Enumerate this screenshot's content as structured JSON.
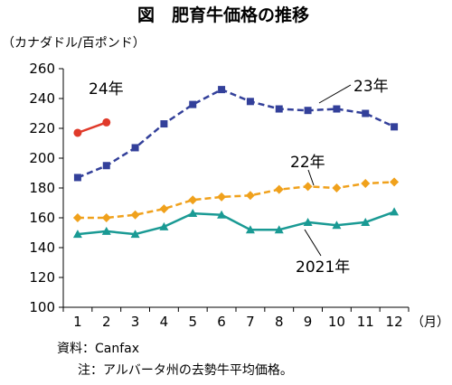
{
  "chart_data": {
    "type": "line",
    "title": "図　肥育牛価格の推移",
    "ylabel": "（カナダドル/百ポンド）",
    "xlabel": "（月）",
    "ylim": [
      100,
      260
    ],
    "y_ticks": [
      100,
      120,
      140,
      160,
      180,
      200,
      220,
      240,
      260
    ],
    "categories": [
      "1",
      "2",
      "3",
      "4",
      "5",
      "6",
      "7",
      "8",
      "9",
      "10",
      "11",
      "12"
    ],
    "grid": false,
    "series": [
      {
        "name": "2021年",
        "color": "#1a9a94",
        "marker": "triangle",
        "dashed": false,
        "values": [
          149,
          151,
          149,
          154,
          163,
          162,
          152,
          152,
          157,
          155,
          157,
          164
        ]
      },
      {
        "name": "22年",
        "color": "#f0a11c",
        "marker": "diamond",
        "dashed": true,
        "values": [
          160,
          160,
          162,
          166,
          172,
          174,
          175,
          179,
          181,
          180,
          183,
          184
        ]
      },
      {
        "name": "23年",
        "color": "#33409a",
        "marker": "square",
        "dashed": true,
        "values": [
          187,
          195,
          207,
          223,
          236,
          246,
          238,
          233,
          232,
          233,
          230,
          221
        ]
      },
      {
        "name": "24年",
        "color": "#e03a2a",
        "marker": "circle",
        "dashed": false,
        "values": [
          217,
          224,
          null,
          null,
          null,
          null,
          null,
          null,
          null,
          null,
          null,
          null
        ]
      }
    ],
    "annotations": [
      "2021年",
      "22年",
      "23年",
      "24年"
    ]
  },
  "notes": {
    "source": "資料：Canfax",
    "note": "注：アルバータ州の去勢牛平均価格。"
  }
}
